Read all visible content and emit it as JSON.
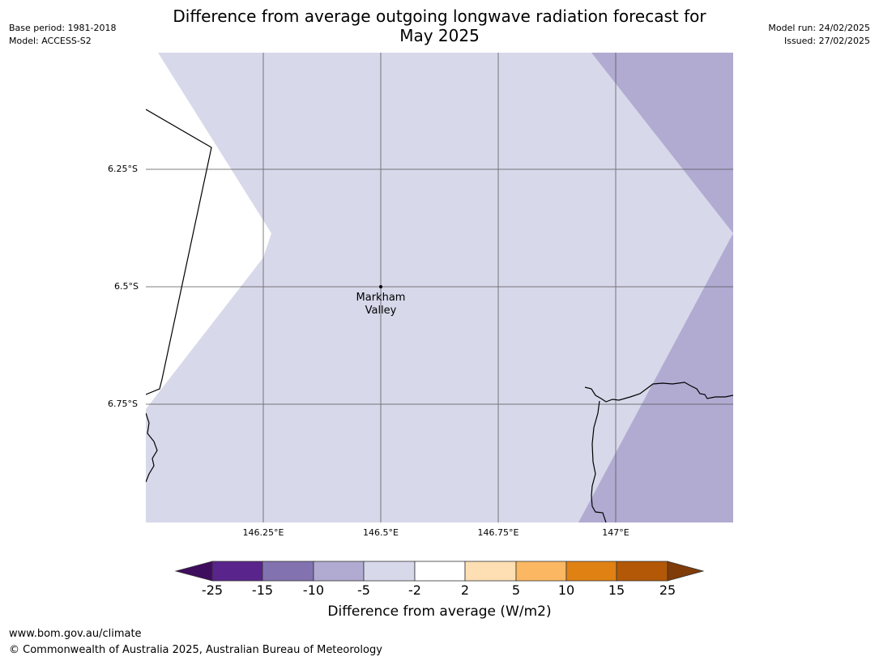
{
  "header": {
    "title_line1": "Difference from average outgoing longwave radiation forecast for",
    "title_line2": "May 2025",
    "base_period": "Base period: 1981-2018",
    "model": "Model: ACCESS-S2",
    "model_run": "Model run: 24/02/2025",
    "issued": "Issued: 27/02/2025"
  },
  "map": {
    "lat_labels": [
      "6.25°S",
      "6.5°S",
      "6.75°S"
    ],
    "lon_labels": [
      "146.25°E",
      "146.5°E",
      "146.75°E",
      "147°E"
    ],
    "place": {
      "name_line1": "Markham",
      "name_line2": "Valley"
    },
    "colors": {
      "light": "#d7d8ea",
      "mid": "#b1abd2",
      "white": "#ffffff"
    }
  },
  "colorbar": {
    "ticks": [
      "-25",
      "-15",
      "-10",
      "-5",
      "-2",
      "2",
      "5",
      "10",
      "15",
      "25"
    ],
    "colors": [
      "#3f0d5e",
      "#59248c",
      "#8273b0",
      "#b1abd2",
      "#d7d8ea",
      "#ffffff",
      "#fedfb3",
      "#fbb762",
      "#e08114",
      "#b35806",
      "#7f3b08"
    ],
    "label": "Difference from average (W/m2)"
  },
  "footer": {
    "url": "www.bom.gov.au/climate",
    "copyright": "© Commonwealth of Australia 2025, Australian Bureau of Meteorology"
  }
}
